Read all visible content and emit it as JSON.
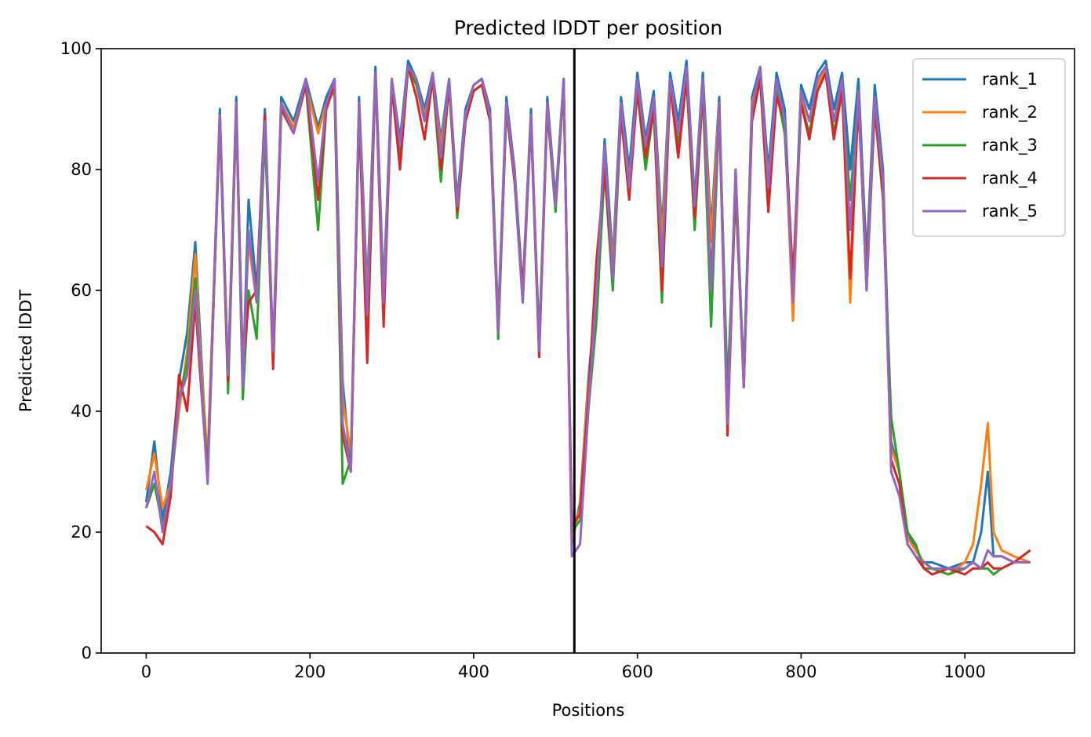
{
  "chart_data": {
    "type": "line",
    "title": "Predicted lDDT per position",
    "xlabel": "Positions",
    "ylabel": "Predicted lDDT",
    "xlim": [
      -55,
      1134
    ],
    "ylim": [
      0,
      100
    ],
    "xticks": [
      0,
      200,
      400,
      600,
      800,
      1000
    ],
    "yticks": [
      0,
      20,
      40,
      60,
      80,
      100
    ],
    "grid": false,
    "legend_position": "top-right",
    "vertical_line_x": 523,
    "series": [
      {
        "name": "rank_1",
        "color": "#1f77b4",
        "x": [
          0,
          10,
          20,
          30,
          40,
          50,
          60,
          65,
          75,
          90,
          100,
          110,
          118,
          125,
          135,
          145,
          155,
          165,
          180,
          195,
          210,
          220,
          230,
          240,
          250,
          260,
          270,
          280,
          290,
          300,
          310,
          320,
          330,
          340,
          350,
          360,
          370,
          380,
          390,
          400,
          410,
          420,
          430,
          440,
          450,
          460,
          470,
          480,
          490,
          500,
          510,
          520,
          530,
          540,
          550,
          560,
          570,
          580,
          590,
          600,
          610,
          620,
          630,
          640,
          650,
          660,
          670,
          680,
          690,
          700,
          710,
          720,
          730,
          740,
          750,
          760,
          770,
          780,
          790,
          800,
          810,
          820,
          830,
          840,
          850,
          860,
          870,
          880,
          890,
          900,
          910,
          920,
          930,
          940,
          950,
          960,
          980,
          1000,
          1010,
          1020,
          1028,
          1035,
          1045,
          1060,
          1080
        ],
        "y": [
          25,
          35,
          22,
          30,
          45,
          53,
          68,
          55,
          30,
          90,
          45,
          92,
          45,
          75,
          60,
          90,
          50,
          92,
          88,
          95,
          87,
          92,
          95,
          45,
          30,
          92,
          60,
          97,
          60,
          95,
          85,
          98,
          95,
          90,
          96,
          85,
          95,
          75,
          90,
          94,
          95,
          90,
          55,
          92,
          80,
          60,
          90,
          50,
          92,
          75,
          95,
          18,
          25,
          45,
          60,
          85,
          65,
          92,
          80,
          96,
          85,
          93,
          70,
          96,
          88,
          98,
          75,
          96,
          70,
          92,
          40,
          80,
          45,
          92,
          97,
          80,
          96,
          90,
          60,
          94,
          90,
          96,
          98,
          90,
          96,
          80,
          95,
          65,
          94,
          80,
          35,
          30,
          20,
          17,
          15,
          15,
          14,
          15,
          15,
          20,
          30,
          16,
          16,
          15,
          15
        ]
      },
      {
        "name": "rank_2",
        "color": "#ff7f0e",
        "x": [
          0,
          10,
          20,
          30,
          40,
          50,
          60,
          65,
          75,
          90,
          100,
          110,
          118,
          125,
          135,
          145,
          155,
          165,
          180,
          195,
          210,
          220,
          230,
          240,
          250,
          260,
          270,
          280,
          290,
          300,
          310,
          320,
          330,
          340,
          350,
          360,
          370,
          380,
          390,
          400,
          410,
          420,
          430,
          440,
          450,
          460,
          470,
          480,
          490,
          500,
          510,
          520,
          530,
          540,
          550,
          560,
          570,
          580,
          590,
          600,
          610,
          620,
          630,
          640,
          650,
          660,
          670,
          680,
          690,
          700,
          710,
          720,
          730,
          740,
          750,
          760,
          770,
          780,
          790,
          800,
          810,
          820,
          830,
          840,
          850,
          860,
          870,
          880,
          890,
          900,
          910,
          920,
          930,
          940,
          950,
          960,
          980,
          1000,
          1010,
          1020,
          1028,
          1035,
          1045,
          1060,
          1080
        ],
        "y": [
          27,
          33,
          24,
          28,
          40,
          50,
          66,
          52,
          32,
          89,
          46,
          91,
          46,
          68,
          58,
          88,
          48,
          91,
          87,
          94,
          86,
          91,
          93,
          42,
          33,
          91,
          58,
          96,
          58,
          94,
          84,
          97,
          94,
          89,
          95,
          84,
          94,
          74,
          89,
          93,
          94,
          89,
          54,
          91,
          79,
          59,
          89,
          50,
          91,
          74,
          94,
          19,
          24,
          44,
          58,
          82,
          64,
          90,
          78,
          94,
          83,
          91,
          68,
          95,
          86,
          96,
          74,
          94,
          68,
          91,
          38,
          78,
          44,
          91,
          96,
          78,
          94,
          88,
          55,
          92,
          88,
          94,
          97,
          88,
          94,
          58,
          93,
          62,
          92,
          78,
          34,
          30,
          19,
          17,
          15,
          14,
          13,
          15,
          18,
          28,
          38,
          20,
          17,
          16,
          15
        ]
      },
      {
        "name": "rank_3",
        "color": "#2ca02c",
        "x": [
          0,
          10,
          20,
          30,
          40,
          50,
          60,
          65,
          75,
          90,
          100,
          110,
          118,
          125,
          135,
          145,
          155,
          165,
          180,
          195,
          210,
          220,
          230,
          240,
          250,
          260,
          270,
          280,
          290,
          300,
          310,
          320,
          330,
          340,
          350,
          360,
          370,
          380,
          390,
          400,
          410,
          420,
          430,
          440,
          450,
          460,
          470,
          480,
          490,
          500,
          510,
          520,
          530,
          540,
          550,
          560,
          570,
          580,
          590,
          600,
          610,
          620,
          630,
          640,
          650,
          660,
          670,
          680,
          690,
          700,
          710,
          720,
          730,
          740,
          750,
          760,
          770,
          780,
          790,
          800,
          810,
          820,
          830,
          840,
          850,
          860,
          870,
          880,
          890,
          900,
          910,
          920,
          930,
          940,
          950,
          960,
          980,
          1000,
          1010,
          1020,
          1028,
          1035,
          1045,
          1060,
          1080
        ],
        "y": [
          24,
          28,
          21,
          27,
          42,
          48,
          62,
          50,
          30,
          88,
          43,
          90,
          42,
          60,
          52,
          86,
          50,
          90,
          86,
          94,
          70,
          90,
          94,
          28,
          32,
          88,
          55,
          96,
          56,
          94,
          82,
          97,
          94,
          88,
          95,
          78,
          94,
          72,
          88,
          93,
          94,
          88,
          52,
          90,
          78,
          58,
          88,
          52,
          90,
          73,
          94,
          20,
          22,
          40,
          55,
          80,
          60,
          89,
          76,
          93,
          80,
          90,
          58,
          94,
          84,
          95,
          70,
          93,
          54,
          90,
          44,
          76,
          46,
          90,
          95,
          75,
          93,
          86,
          60,
          91,
          86,
          93,
          96,
          86,
          93,
          75,
          92,
          60,
          90,
          75,
          39,
          30,
          20,
          18,
          14,
          14,
          13,
          14,
          15,
          14,
          14,
          13,
          14,
          15,
          15
        ]
      },
      {
        "name": "rank_4",
        "color": "#d62728",
        "x": [
          0,
          10,
          20,
          30,
          40,
          50,
          60,
          65,
          75,
          90,
          100,
          110,
          118,
          125,
          135,
          145,
          155,
          165,
          180,
          195,
          210,
          220,
          230,
          240,
          250,
          260,
          270,
          280,
          290,
          300,
          310,
          320,
          330,
          340,
          350,
          360,
          370,
          380,
          390,
          400,
          410,
          420,
          430,
          440,
          450,
          460,
          470,
          480,
          490,
          500,
          510,
          520,
          530,
          540,
          550,
          560,
          570,
          580,
          590,
          600,
          610,
          620,
          630,
          640,
          650,
          660,
          670,
          680,
          690,
          700,
          710,
          720,
          730,
          740,
          750,
          760,
          770,
          780,
          790,
          800,
          810,
          820,
          830,
          840,
          850,
          860,
          870,
          880,
          890,
          900,
          910,
          920,
          930,
          940,
          950,
          960,
          980,
          1000,
          1010,
          1020,
          1028,
          1035,
          1045,
          1060,
          1080
        ],
        "y": [
          21,
          20,
          18,
          26,
          46,
          40,
          58,
          48,
          29,
          88,
          45,
          90,
          47,
          58,
          60,
          89,
          47,
          90,
          86,
          94,
          75,
          90,
          94,
          36,
          30,
          90,
          48,
          96,
          54,
          94,
          80,
          97,
          92,
          85,
          95,
          80,
          94,
          73,
          88,
          93,
          94,
          88,
          53,
          90,
          78,
          60,
          88,
          49,
          90,
          74,
          94,
          21,
          23,
          42,
          65,
          80,
          62,
          89,
          75,
          93,
          82,
          90,
          60,
          94,
          82,
          95,
          72,
          93,
          62,
          90,
          36,
          78,
          44,
          88,
          95,
          73,
          92,
          88,
          62,
          91,
          85,
          93,
          96,
          85,
          93,
          62,
          91,
          62,
          90,
          76,
          32,
          28,
          18,
          16,
          14,
          13,
          14,
          13,
          14,
          14,
          15,
          14,
          14,
          15,
          17
        ]
      },
      {
        "name": "rank_5",
        "color": "#9467bd",
        "x": [
          0,
          10,
          20,
          30,
          40,
          50,
          60,
          65,
          75,
          90,
          100,
          110,
          118,
          125,
          135,
          145,
          155,
          165,
          180,
          195,
          210,
          220,
          230,
          240,
          250,
          260,
          270,
          280,
          290,
          300,
          310,
          320,
          330,
          340,
          350,
          360,
          370,
          380,
          390,
          400,
          410,
          420,
          430,
          440,
          450,
          460,
          470,
          480,
          490,
          500,
          510,
          520,
          530,
          540,
          550,
          560,
          570,
          580,
          590,
          600,
          610,
          620,
          630,
          640,
          650,
          660,
          670,
          680,
          690,
          700,
          710,
          720,
          730,
          740,
          750,
          760,
          770,
          780,
          790,
          800,
          810,
          820,
          830,
          840,
          850,
          860,
          870,
          880,
          890,
          900,
          910,
          920,
          930,
          940,
          950,
          960,
          980,
          1000,
          1010,
          1020,
          1028,
          1035,
          1045,
          1060,
          1080
        ],
        "y": [
          24,
          30,
          20,
          28,
          42,
          46,
          60,
          50,
          28,
          89,
          46,
          91,
          44,
          70,
          58,
          88,
          50,
          91,
          86,
          95,
          78,
          91,
          95,
          38,
          30,
          91,
          56,
          96,
          58,
          95,
          84,
          97,
          95,
          88,
          96,
          82,
          95,
          74,
          89,
          94,
          95,
          89,
          53,
          91,
          79,
          58,
          89,
          50,
          91,
          74,
          95,
          16,
          18,
          40,
          60,
          84,
          62,
          91,
          77,
          95,
          84,
          92,
          64,
          95,
          86,
          97,
          74,
          95,
          60,
          91,
          38,
          80,
          44,
          90,
          97,
          77,
          95,
          88,
          58,
          93,
          88,
          95,
          97,
          88,
          95,
          70,
          93,
          60,
          92,
          78,
          30,
          26,
          18,
          16,
          15,
          14,
          14,
          14,
          15,
          14,
          17,
          16,
          16,
          15,
          15
        ]
      }
    ]
  }
}
